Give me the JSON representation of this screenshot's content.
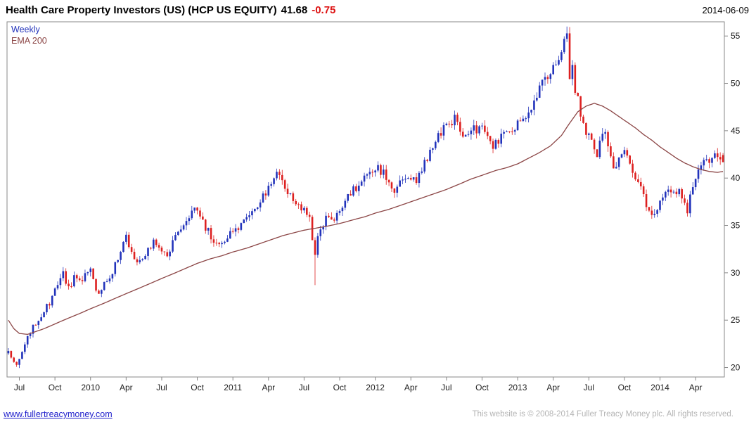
{
  "header": {
    "title": "Health Care Property Investors (US) (HCP US EQUITY)",
    "price": "41.68",
    "change": "-0.75",
    "date": "2014-06-09"
  },
  "legend": {
    "timeframe": "Weekly",
    "overlay": "EMA 200"
  },
  "footer": {
    "link": "www.fullertreacymoney.com",
    "copyright": "This website is © 2008-2014 Fuller Treacy Money plc. All rights reserved."
  },
  "chart_data": {
    "type": "candlestick",
    "title": "Health Care Property Investors (US) (HCP US EQUITY)",
    "timeframe": "Weekly",
    "overlay": "EMA 200",
    "last_close": 41.68,
    "last_change": -0.75,
    "date": "2014-06-09",
    "ylim": [
      19,
      56.5
    ],
    "y_ticks": [
      20,
      25,
      30,
      35,
      40,
      45,
      50,
      55
    ],
    "x_tick_labels": [
      "Jul",
      "Oct",
      "2010",
      "Apr",
      "Jul",
      "Oct",
      "2011",
      "Apr",
      "Jul",
      "Oct",
      "2012",
      "Apr",
      "Jul",
      "Oct",
      "2013",
      "Apr",
      "Jul",
      "Oct",
      "2014",
      "Apr"
    ],
    "x_tick_weeks": [
      4,
      17,
      30,
      43,
      56,
      69,
      82,
      95,
      108,
      121,
      134,
      147,
      160,
      173,
      186,
      199,
      212,
      225,
      238,
      251
    ],
    "weeks_total": 262,
    "grid": false,
    "legend_position": "top-left",
    "colors": {
      "up": "#2233bb",
      "down": "#dd2020",
      "ema": "#8b4545",
      "axis": "#888888",
      "change_negative": "#dd1111"
    },
    "price_keyframes": [
      [
        0,
        22.0
      ],
      [
        1,
        20.8
      ],
      [
        3,
        20.4
      ],
      [
        5,
        21.5
      ],
      [
        7,
        23.0
      ],
      [
        9,
        24.3
      ],
      [
        11,
        25.2
      ],
      [
        13,
        26.0
      ],
      [
        15,
        26.8
      ],
      [
        17,
        28.0
      ],
      [
        19,
        29.3
      ],
      [
        20,
        29.9
      ],
      [
        22,
        28.4
      ],
      [
        24,
        29.4
      ],
      [
        26,
        29.0
      ],
      [
        28,
        29.6
      ],
      [
        30,
        30.2
      ],
      [
        32,
        28.4
      ],
      [
        33,
        27.6
      ],
      [
        35,
        28.8
      ],
      [
        37,
        29.6
      ],
      [
        39,
        30.8
      ],
      [
        41,
        32.2
      ],
      [
        43,
        33.8
      ],
      [
        45,
        32.0
      ],
      [
        47,
        30.9
      ],
      [
        49,
        31.6
      ],
      [
        51,
        32.6
      ],
      [
        53,
        33.2
      ],
      [
        55,
        32.8
      ],
      [
        57,
        32.3
      ],
      [
        58,
        31.9
      ],
      [
        60,
        33.2
      ],
      [
        62,
        34.3
      ],
      [
        64,
        35.0
      ],
      [
        66,
        35.9
      ],
      [
        68,
        36.5
      ],
      [
        70,
        35.9
      ],
      [
        72,
        34.8
      ],
      [
        74,
        33.9
      ],
      [
        76,
        33.1
      ],
      [
        78,
        33.3
      ],
      [
        80,
        34.0
      ],
      [
        82,
        34.4
      ],
      [
        84,
        34.9
      ],
      [
        86,
        35.5
      ],
      [
        88,
        36.0
      ],
      [
        90,
        36.5
      ],
      [
        92,
        37.3
      ],
      [
        94,
        38.6
      ],
      [
        96,
        39.8
      ],
      [
        98,
        40.5
      ],
      [
        100,
        39.6
      ],
      [
        102,
        38.3
      ],
      [
        104,
        37.9
      ],
      [
        106,
        36.9
      ],
      [
        108,
        36.6
      ],
      [
        110,
        36.2
      ],
      [
        111,
        33.8
      ],
      [
        112,
        31.9
      ],
      [
        113,
        33.9
      ],
      [
        115,
        35.0
      ],
      [
        117,
        36.2
      ],
      [
        119,
        35.7
      ],
      [
        121,
        36.6
      ],
      [
        123,
        37.8
      ],
      [
        125,
        38.4
      ],
      [
        127,
        39.0
      ],
      [
        129,
        39.7
      ],
      [
        131,
        40.2
      ],
      [
        133,
        40.5
      ],
      [
        135,
        41.0
      ],
      [
        137,
        40.6
      ],
      [
        139,
        39.6
      ],
      [
        141,
        38.8
      ],
      [
        143,
        39.4
      ],
      [
        145,
        40.0
      ],
      [
        147,
        39.6
      ],
      [
        149,
        39.9
      ],
      [
        151,
        40.9
      ],
      [
        153,
        42.2
      ],
      [
        155,
        43.4
      ],
      [
        157,
        44.6
      ],
      [
        159,
        45.2
      ],
      [
        161,
        45.6
      ],
      [
        163,
        46.3
      ],
      [
        165,
        45.0
      ],
      [
        167,
        44.6
      ],
      [
        169,
        45.5
      ],
      [
        171,
        45.0
      ],
      [
        173,
        45.3
      ],
      [
        175,
        44.0
      ],
      [
        177,
        43.2
      ],
      [
        179,
        44.0
      ],
      [
        181,
        44.9
      ],
      [
        183,
        45.3
      ],
      [
        185,
        45.5
      ],
      [
        187,
        45.8
      ],
      [
        189,
        46.6
      ],
      [
        191,
        47.6
      ],
      [
        193,
        48.8
      ],
      [
        195,
        49.9
      ],
      [
        197,
        50.6
      ],
      [
        199,
        51.6
      ],
      [
        201,
        52.8
      ],
      [
        203,
        54.4
      ],
      [
        204,
        55.3
      ],
      [
        205,
        50.9
      ],
      [
        206,
        52.1
      ],
      [
        207,
        48.9
      ],
      [
        208,
        48.3
      ],
      [
        209,
        46.3
      ],
      [
        211,
        44.9
      ],
      [
        213,
        43.7
      ],
      [
        215,
        42.4
      ],
      [
        216,
        44.1
      ],
      [
        218,
        44.9
      ],
      [
        219,
        43.8
      ],
      [
        220,
        42.5
      ],
      [
        221,
        40.7
      ],
      [
        222,
        41.5
      ],
      [
        223,
        42.4
      ],
      [
        225,
        42.9
      ],
      [
        227,
        41.7
      ],
      [
        229,
        40.3
      ],
      [
        231,
        38.9
      ],
      [
        233,
        37.3
      ],
      [
        235,
        36.3
      ],
      [
        237,
        36.9
      ],
      [
        239,
        37.7
      ],
      [
        241,
        38.7
      ],
      [
        243,
        38.2
      ],
      [
        245,
        38.8
      ],
      [
        247,
        37.1
      ],
      [
        248,
        36.6
      ],
      [
        249,
        38.1
      ],
      [
        251,
        39.9
      ],
      [
        253,
        41.3
      ],
      [
        255,
        41.9
      ],
      [
        257,
        42.2
      ],
      [
        259,
        42.4
      ],
      [
        260,
        42.4
      ],
      [
        261,
        41.68
      ]
    ],
    "ema_keyframes": [
      [
        0,
        25.0
      ],
      [
        2,
        24.1
      ],
      [
        4,
        23.6
      ],
      [
        7,
        23.5
      ],
      [
        10,
        23.8
      ],
      [
        13,
        24.1
      ],
      [
        17,
        24.6
      ],
      [
        21,
        25.1
      ],
      [
        26,
        25.7
      ],
      [
        30,
        26.2
      ],
      [
        35,
        26.8
      ],
      [
        39,
        27.3
      ],
      [
        43,
        27.8
      ],
      [
        48,
        28.4
      ],
      [
        52,
        28.9
      ],
      [
        56,
        29.4
      ],
      [
        61,
        30.0
      ],
      [
        65,
        30.5
      ],
      [
        69,
        31.0
      ],
      [
        74,
        31.5
      ],
      [
        78,
        31.8
      ],
      [
        82,
        32.2
      ],
      [
        87,
        32.6
      ],
      [
        91,
        33.0
      ],
      [
        95,
        33.4
      ],
      [
        100,
        33.9
      ],
      [
        104,
        34.2
      ],
      [
        108,
        34.5
      ],
      [
        112,
        34.7
      ],
      [
        116,
        34.9
      ],
      [
        121,
        35.2
      ],
      [
        126,
        35.6
      ],
      [
        130,
        35.9
      ],
      [
        134,
        36.3
      ],
      [
        139,
        36.7
      ],
      [
        143,
        37.1
      ],
      [
        147,
        37.5
      ],
      [
        152,
        38.0
      ],
      [
        156,
        38.4
      ],
      [
        160,
        38.8
      ],
      [
        165,
        39.4
      ],
      [
        169,
        39.9
      ],
      [
        173,
        40.3
      ],
      [
        178,
        40.8
      ],
      [
        182,
        41.1
      ],
      [
        186,
        41.5
      ],
      [
        190,
        42.1
      ],
      [
        194,
        42.7
      ],
      [
        198,
        43.4
      ],
      [
        202,
        44.5
      ],
      [
        205,
        45.8
      ],
      [
        208,
        47.0
      ],
      [
        211,
        47.6
      ],
      [
        214,
        47.9
      ],
      [
        217,
        47.6
      ],
      [
        220,
        47.1
      ],
      [
        223,
        46.5
      ],
      [
        226,
        45.9
      ],
      [
        229,
        45.3
      ],
      [
        232,
        44.6
      ],
      [
        235,
        44.0
      ],
      [
        238,
        43.3
      ],
      [
        241,
        42.7
      ],
      [
        244,
        42.1
      ],
      [
        247,
        41.6
      ],
      [
        250,
        41.2
      ],
      [
        253,
        40.9
      ],
      [
        256,
        40.7
      ],
      [
        259,
        40.6
      ],
      [
        261,
        40.7
      ]
    ],
    "wick_events": [
      {
        "week": 20,
        "high": 30.6
      },
      {
        "week": 98,
        "high": 41.0
      },
      {
        "week": 112,
        "low": 28.7
      },
      {
        "week": 163,
        "high": 46.8
      },
      {
        "week": 204,
        "high": 56.0
      },
      {
        "week": 235,
        "low": 35.7
      },
      {
        "week": 248,
        "low": 36.2
      }
    ]
  }
}
